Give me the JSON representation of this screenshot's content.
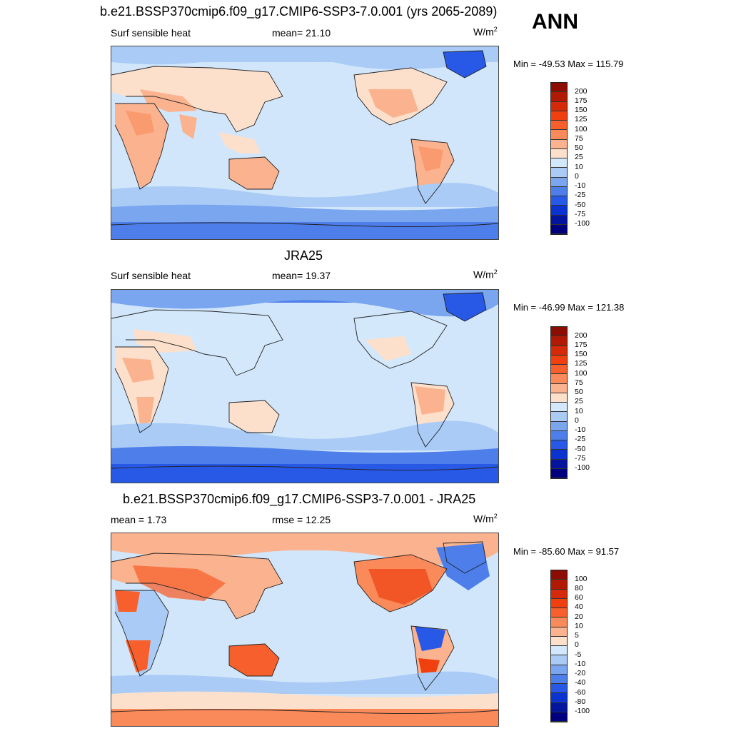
{
  "header": {
    "title": "b.e21.BSSP370cmip6.f09_g17.CMIP6-SSP3-7.0.001 (yrs 2065-2089)",
    "season": "ANN"
  },
  "panels": [
    {
      "title": "",
      "left_label": "Surf sensible heat",
      "center_label": "mean=  21.10",
      "units": "W/m",
      "units_sup": "2",
      "minmax": "Min = -49.53 Max = 115.79",
      "colorbar_labels": [
        "200",
        "175",
        "150",
        "125",
        "100",
        "75",
        "50",
        "25",
        "10",
        "0",
        "-10",
        "-25",
        "-50",
        "-75",
        "-100"
      ]
    },
    {
      "title": "JRA25",
      "left_label": "Surf sensible heat",
      "center_label": "mean=  19.37",
      "units": "W/m",
      "units_sup": "2",
      "minmax": "Min = -46.99 Max = 121.38",
      "colorbar_labels": [
        "200",
        "175",
        "150",
        "125",
        "100",
        "75",
        "50",
        "25",
        "10",
        "0",
        "-10",
        "-25",
        "-50",
        "-75",
        "-100"
      ]
    },
    {
      "title": "b.e21.BSSP370cmip6.f09_g17.CMIP6-SSP3-7.0.001 - JRA25",
      "left_label": "mean =   1.73",
      "center_label": "rmse =  12.25",
      "units": "W/m",
      "units_sup": "2",
      "minmax": "Min = -85.60 Max =  91.57",
      "colorbar_labels": [
        "100",
        "80",
        "60",
        "40",
        "20",
        "10",
        "5",
        "0",
        "-5",
        "-10",
        "-20",
        "-40",
        "-60",
        "-80",
        "-100"
      ]
    }
  ],
  "colors": {
    "colorbar": [
      "#8b0d03",
      "#b01a05",
      "#d42a09",
      "#f04010",
      "#f7602c",
      "#fa8a5a",
      "#fbb28e",
      "#fde0cc",
      "#d3e8fb",
      "#a9cbf6",
      "#7aa6f0",
      "#4d7eea",
      "#2758e6",
      "#0b33cf",
      "#04149c",
      "#00007f"
    ],
    "ocean": "#d2e6fb",
    "land_warm": "#fde0cc",
    "land_hot": "#fbb28e",
    "cold": "#a9cbf6",
    "colder": "#4d7eea",
    "coldest": "#2758e6"
  }
}
